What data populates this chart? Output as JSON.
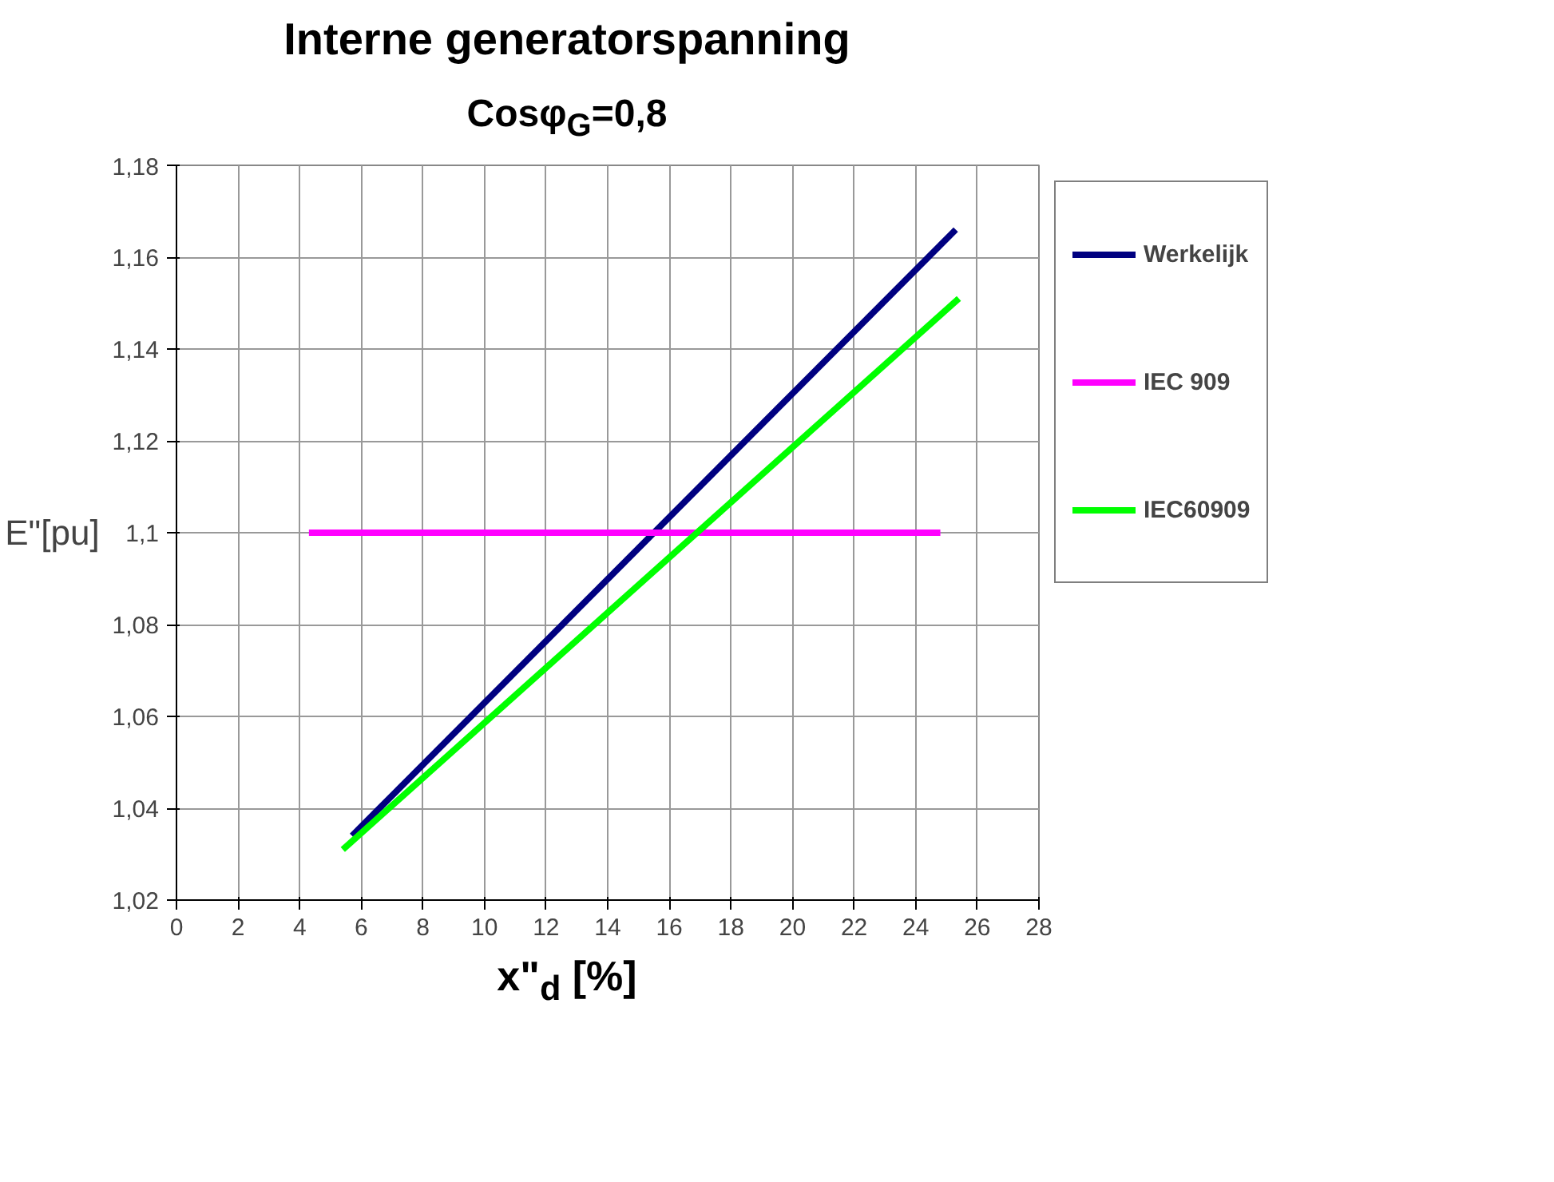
{
  "chart_data": {
    "type": "line",
    "title": "Interne generatorspanning",
    "subtitle": "Cosφ$_{G}$=0,8",
    "xlabel": "x\"$_{d}$ [%]",
    "ylabel": "E\"[pu]",
    "xlim": [
      0,
      28
    ],
    "xticks": [
      0,
      2,
      4,
      6,
      8,
      10,
      12,
      14,
      16,
      18,
      20,
      22,
      24,
      26,
      28
    ],
    "ylim": [
      1.02,
      1.18
    ],
    "yticks": [
      {
        "value": 1.02,
        "label": "1,02"
      },
      {
        "value": 1.04,
        "label": "1,04"
      },
      {
        "value": 1.06,
        "label": "1,06"
      },
      {
        "value": 1.08,
        "label": "1,08"
      },
      {
        "value": 1.1,
        "label": "1,1"
      },
      {
        "value": 1.12,
        "label": "1,12"
      },
      {
        "value": 1.14,
        "label": "1,14"
      },
      {
        "value": 1.16,
        "label": "1,16"
      },
      {
        "value": 1.18,
        "label": "1,18"
      }
    ],
    "grid": true,
    "legend": "right",
    "marker": "none",
    "line_style": "solid",
    "series": [
      {
        "name": "Werkelijk",
        "color": "#000080",
        "x": [
          5.7,
          25.3
        ],
        "values": [
          1.034,
          1.166
        ]
      },
      {
        "name": "IEC 909",
        "color": "#ff00ff",
        "x": [
          4.3,
          24.8
        ],
        "values": [
          1.1,
          1.1
        ]
      },
      {
        "name": "IEC60909",
        "color": "#00ff00",
        "x": [
          5.4,
          25.4
        ],
        "values": [
          1.031,
          1.151
        ]
      }
    ]
  }
}
